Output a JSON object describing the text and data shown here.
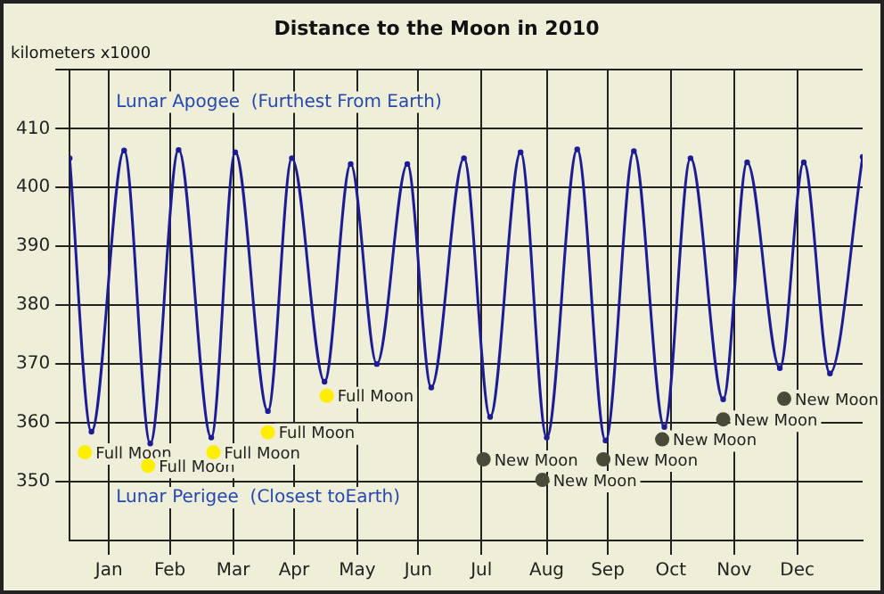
{
  "chart_data": {
    "type": "line",
    "title": "Distance to the Moon in 2010",
    "ylabel": "kilometers x1000",
    "annotations": [
      "Lunar Apogee  (Furthest From Earth)",
      "Lunar Perigee  (Closest toEarth)"
    ],
    "xlim": [
      "2010-01-01",
      "2010-12-31"
    ],
    "ylim": [
      340,
      420
    ],
    "xticks": [
      {
        "value": "2010-01-19",
        "label": "Jan"
      },
      {
        "value": "2010-02-16",
        "label": "Feb"
      },
      {
        "value": "2010-03-17",
        "label": "Mar"
      },
      {
        "value": "2010-04-14",
        "label": "Apr"
      },
      {
        "value": "2010-05-13",
        "label": "May"
      },
      {
        "value": "2010-06-10",
        "label": "Jun"
      },
      {
        "value": "2010-07-09",
        "label": "Jul"
      },
      {
        "value": "2010-08-08",
        "label": "Aug"
      },
      {
        "value": "2010-09-05",
        "label": "Sep"
      },
      {
        "value": "2010-10-04",
        "label": "Oct"
      },
      {
        "value": "2010-11-02",
        "label": "Nov"
      },
      {
        "value": "2010-12-01",
        "label": "Dec"
      }
    ],
    "yticks": [
      350,
      360,
      370,
      380,
      390,
      400,
      410,
      {
        "value": 420,
        "label": null
      }
    ],
    "grid": true,
    "marker": "circle",
    "line_style": "solid",
    "series": [
      {
        "color": "#1c1c96",
        "x": [
          "2010-01-01",
          "2010-01-11",
          "2010-01-26",
          "2010-02-07",
          "2010-02-20",
          "2010-03-07",
          "2010-03-18",
          "2010-04-02",
          "2010-04-13",
          "2010-04-28",
          "2010-05-10",
          "2010-05-22",
          "2010-06-05",
          "2010-06-16",
          "2010-07-01",
          "2010-07-13",
          "2010-07-27",
          "2010-08-08",
          "2010-08-22",
          "2010-09-04",
          "2010-09-17",
          "2010-10-01",
          "2010-10-13",
          "2010-10-28",
          "2010-11-08",
          "2010-11-23",
          "2010-12-04",
          "2010-12-16",
          "2010-12-31"
        ],
        "values": [
          405,
          358.5,
          406.3,
          356.5,
          406.4,
          357.5,
          406,
          362,
          405,
          367,
          404,
          370,
          404,
          366,
          405,
          361,
          406,
          357.5,
          406.5,
          357,
          406.2,
          359.3,
          405,
          364,
          404.3,
          369.3,
          404.3,
          368.4,
          405.2
        ]
      },
      {
        "type": "scatter",
        "color": "#ffee00",
        "x": [
          "2010-01-08",
          "2010-02-06",
          "2010-03-08",
          "2010-04-02",
          "2010-04-29"
        ],
        "values": [
          355,
          352.7,
          355,
          358.4,
          364.6
        ],
        "value_labels": [
          "Full Moon",
          "Full Moon",
          "Full Moon",
          "Full Moon",
          "Full Moon"
        ]
      },
      {
        "type": "scatter",
        "color": "#4a4a3a",
        "x": [
          "2010-07-10",
          "2010-08-06",
          "2010-09-03",
          "2010-09-30",
          "2010-10-28",
          "2010-11-25"
        ],
        "values": [
          353.8,
          350.3,
          353.8,
          357.2,
          360.6,
          364.1
        ],
        "value_labels": [
          "New Moon",
          "New Moon",
          "New Moon",
          "New Moon",
          "New Moon",
          "New Moon"
        ]
      }
    ]
  }
}
